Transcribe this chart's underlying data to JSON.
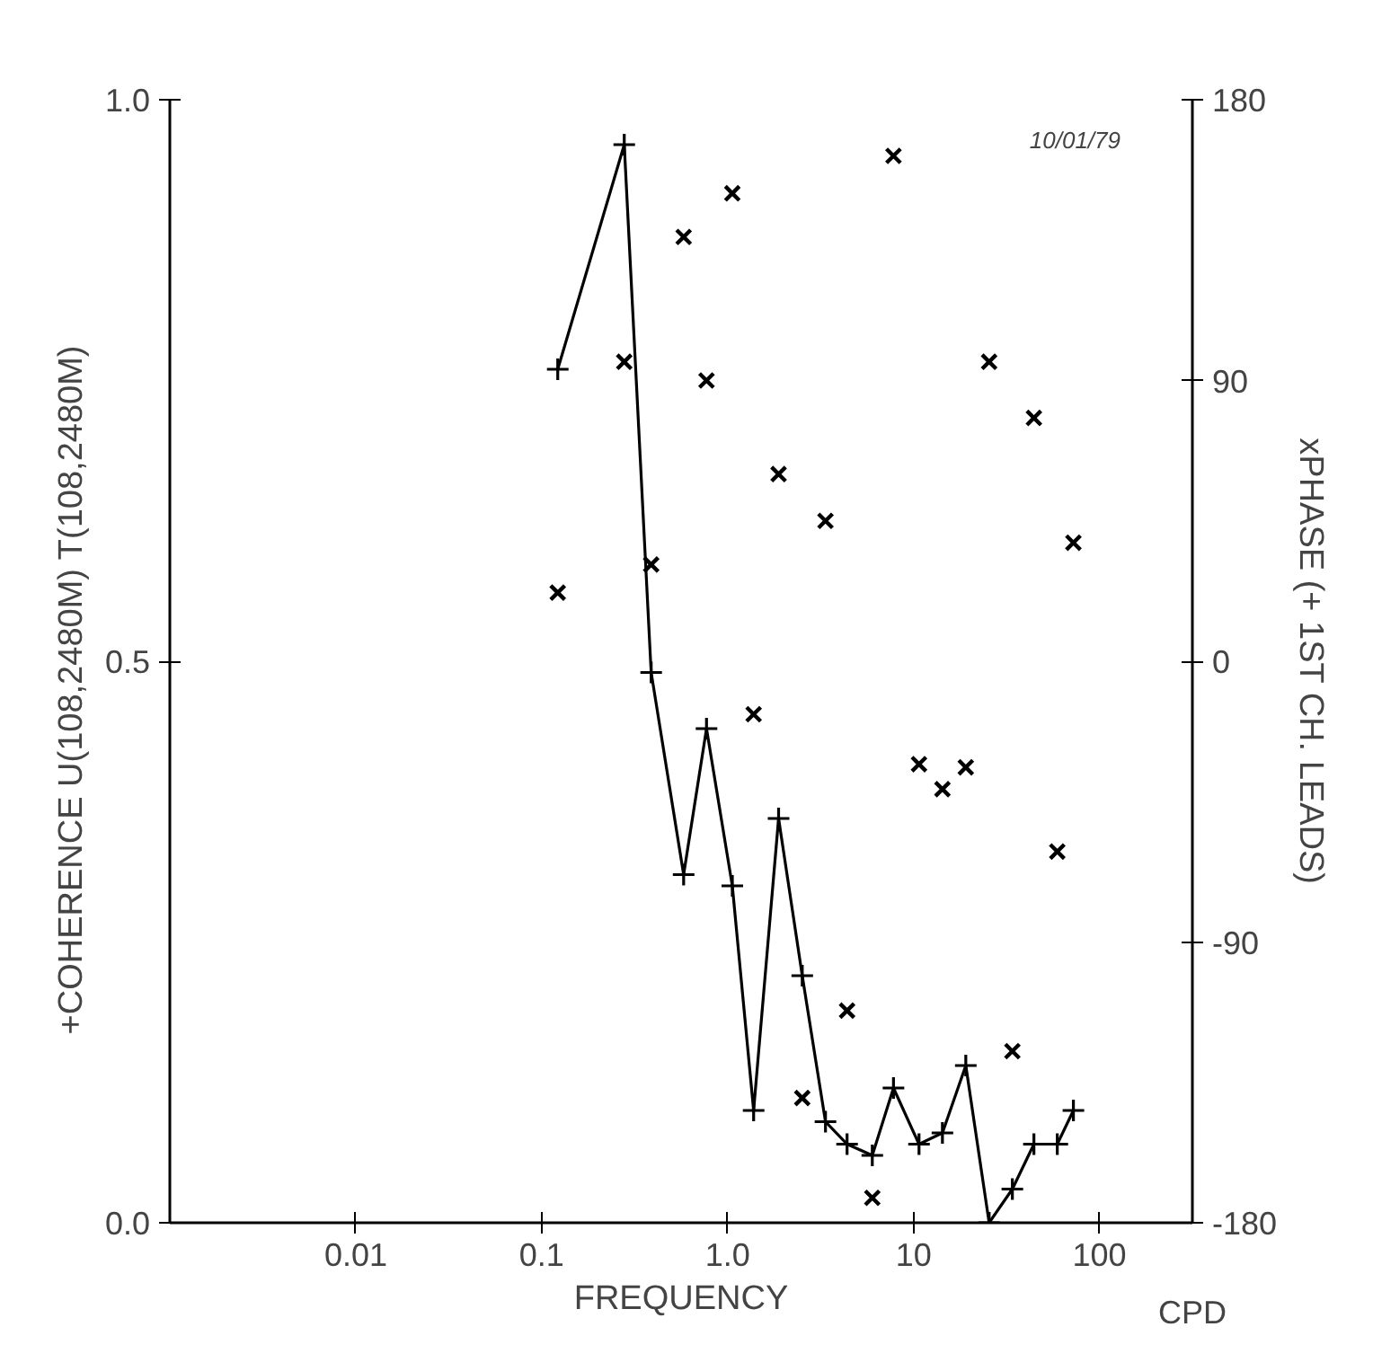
{
  "chart_data": {
    "type": "line",
    "xlabel": "FREQUENCY",
    "ylabel": "+COHERENCE    U(108,2480M)    T(108,2480M)",
    "y2label": "xPHASE (+ 1ST CH. LEADS)",
    "annotations": [
      "10/01/79",
      "CPD"
    ],
    "xlim": [
      0.001,
      316
    ],
    "xticks": [
      0.01,
      0.1,
      {
        "value": 1,
        "label": "1.0"
      },
      10,
      100
    ],
    "ylim": [
      0,
      1
    ],
    "yticks": [
      {
        "value": 0,
        "label": "0.0"
      },
      0.5,
      {
        "value": 1,
        "label": "1.0"
      }
    ],
    "y2lim": [
      -180,
      180
    ],
    "y2ticks": [
      -180,
      -90,
      0,
      90,
      180
    ],
    "log": "x",
    "grid": false,
    "series": [
      {
        "marker": "cross",
        "line_style": "solid",
        "color": "#000000",
        "x": [
          0.122,
          0.278,
          0.388,
          0.58,
          0.77,
          1.06,
          1.38,
          1.88,
          2.52,
          3.36,
          4.39,
          6.0,
          7.8,
          10.7,
          14.3,
          19.1,
          25.5,
          34.0,
          44.4,
          59.3,
          72.4
        ],
        "values": [
          0.76,
          0.96,
          0.49,
          0.31,
          0.44,
          0.3,
          0.1,
          0.36,
          0.22,
          0.09,
          0.07,
          0.06,
          0.12,
          0.07,
          0.08,
          0.14,
          0.0,
          0.03,
          0.07,
          0.07,
          0.1
        ]
      },
      {
        "type": "scatter",
        "marker": "x",
        "axis": "y2",
        "color": "#000000",
        "x": [
          0.122,
          0.278,
          0.388,
          0.58,
          0.77,
          1.06,
          1.38,
          1.88,
          2.52,
          3.36,
          4.39,
          6.0,
          7.8,
          10.7,
          14.3,
          19.1,
          25.5,
          34.0,
          44.4,
          59.3,
          72.4
        ],
        "values": [
          22,
          96,
          31,
          136,
          90,
          150,
          -17,
          60,
          -140,
          45,
          -112,
          -172,
          162,
          -33,
          -41,
          -34,
          96,
          -125,
          78,
          -61,
          38
        ]
      }
    ]
  }
}
